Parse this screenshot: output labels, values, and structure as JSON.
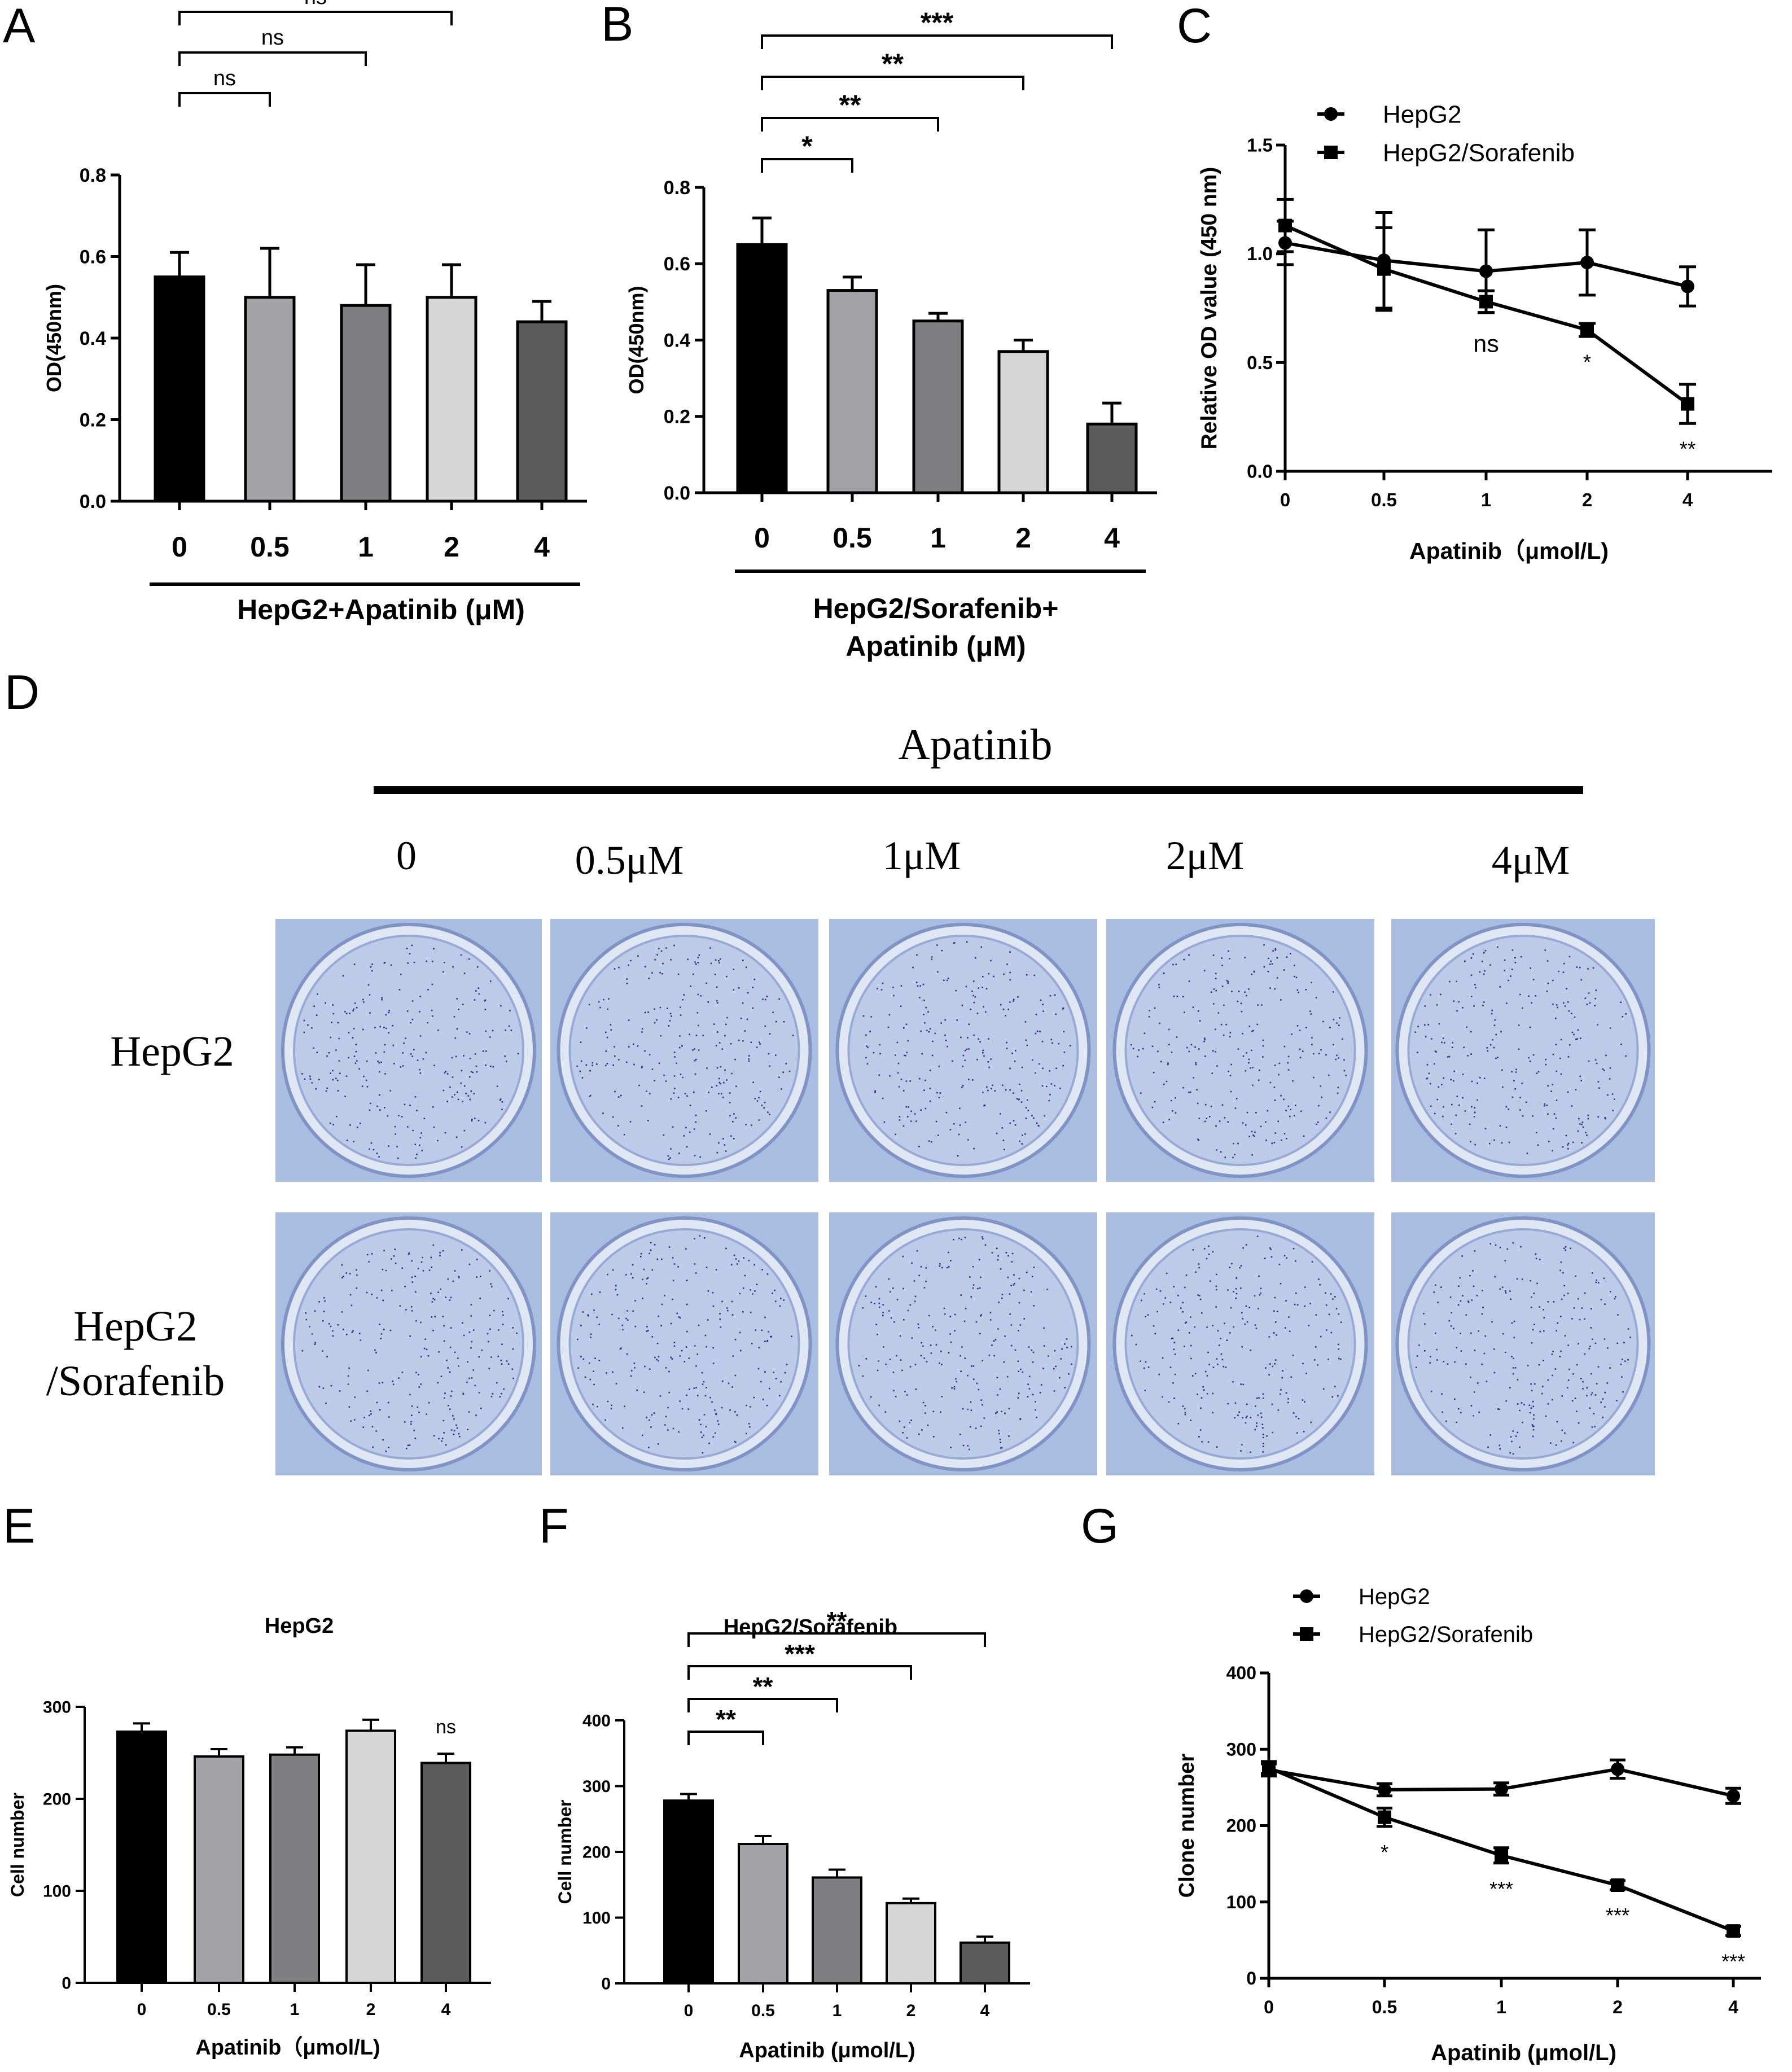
{
  "colors": {
    "black": "#000000",
    "bar_fills": [
      "#000000",
      "#a3a3a7",
      "#7f7f81",
      "#d6d6d6",
      "#5b5b5b"
    ],
    "plate_bg": "#a9bde0",
    "well_fill": "#bccbe8",
    "colony": "#3a2d86"
  },
  "panels": {
    "A": {
      "letter": "A"
    },
    "B": {
      "letter": "B"
    },
    "C": {
      "letter": "C"
    },
    "D": {
      "letter": "D"
    },
    "E": {
      "letter": "E"
    },
    "F": {
      "letter": "F"
    },
    "G": {
      "letter": "G"
    }
  },
  "panelD": {
    "header": "Apatinib",
    "columns": [
      "0",
      "0.5μM",
      "1μM",
      "2μM",
      "4μM"
    ],
    "rows": [
      "HepG2",
      "HepG2",
      "/Sorafenib"
    ]
  },
  "chart_data": [
    {
      "id": "A",
      "type": "bar",
      "categories": [
        "0",
        "0.5",
        "1",
        "2",
        "4"
      ],
      "values": [
        0.55,
        0.5,
        0.48,
        0.5,
        0.44
      ],
      "errors": [
        0.06,
        0.12,
        0.1,
        0.08,
        0.05
      ],
      "ylabel": "OD(450nm)",
      "yticks": [
        "0.0",
        "0.2",
        "0.4",
        "0.6",
        "0.8"
      ],
      "ylim": [
        0,
        0.8
      ],
      "group_label": "HepG2+Apatinib (μM)",
      "significance": [
        {
          "from": 0,
          "to": 1,
          "label": "ns"
        },
        {
          "from": 0,
          "to": 2,
          "label": "ns"
        },
        {
          "from": 0,
          "to": 3,
          "label": "ns"
        },
        {
          "from": 0,
          "to": 4,
          "label": "ns"
        }
      ]
    },
    {
      "id": "B",
      "type": "bar",
      "categories": [
        "0",
        "0.5",
        "1",
        "2",
        "4"
      ],
      "values": [
        0.65,
        0.53,
        0.45,
        0.37,
        0.18
      ],
      "errors": [
        0.07,
        0.035,
        0.02,
        0.03,
        0.055
      ],
      "ylabel": "OD(450nm)",
      "yticks": [
        "0.0",
        "0.2",
        "0.4",
        "0.6",
        "0.8"
      ],
      "ylim": [
        0,
        0.8
      ],
      "group_label_lines": [
        "HepG2/Sorafenib+",
        "Apatinib (μM)"
      ],
      "significance": [
        {
          "from": 0,
          "to": 1,
          "label": "*"
        },
        {
          "from": 0,
          "to": 2,
          "label": "**"
        },
        {
          "from": 0,
          "to": 3,
          "label": "**"
        },
        {
          "from": 0,
          "to": 4,
          "label": "***"
        }
      ]
    },
    {
      "id": "C",
      "type": "line",
      "x": [
        "0",
        "0.5",
        "1",
        "2",
        "4"
      ],
      "series": [
        {
          "name": "HepG2",
          "marker": "circle",
          "values": [
            1.05,
            0.97,
            0.92,
            0.96,
            0.85
          ],
          "errors": [
            0.1,
            0.22,
            0.19,
            0.15,
            0.09
          ]
        },
        {
          "name": "HepG2/Sorafenib",
          "marker": "square",
          "values": [
            1.13,
            0.93,
            0.78,
            0.65,
            0.31
          ],
          "errors": [
            0.12,
            0.19,
            0.05,
            0.03,
            0.09
          ]
        }
      ],
      "annotations": [
        {
          "index": 2,
          "label": "ns"
        },
        {
          "index": 3,
          "label": "*"
        },
        {
          "index": 4,
          "label": "**"
        }
      ],
      "ylabel": "Relative OD value (450 nm)",
      "xlabel": "Apatinib（μmol/L)",
      "yticks": [
        "0.0",
        "0.5",
        "1.0",
        "1.5"
      ],
      "ylim": [
        0,
        1.5
      ]
    },
    {
      "id": "E",
      "type": "bar",
      "title": "HepG2",
      "categories": [
        "0",
        "0.5",
        "1",
        "2",
        "4"
      ],
      "values": [
        273,
        246,
        248,
        274,
        239
      ],
      "errors": [
        9,
        8,
        8,
        12,
        10
      ],
      "ylabel": "Cell number",
      "xlabel": "Apatinib（μmol/L)",
      "yticks": [
        "0",
        "100",
        "200",
        "300"
      ],
      "ylim": [
        0,
        300
      ],
      "annotations": [
        {
          "index": 4,
          "label": "ns"
        }
      ]
    },
    {
      "id": "F",
      "type": "bar",
      "title": "HepG2/Sorafenib",
      "categories": [
        "0",
        "0.5",
        "1",
        "2",
        "4"
      ],
      "values": [
        278,
        212,
        161,
        122,
        62
      ],
      "errors": [
        10,
        12,
        12,
        7,
        9
      ],
      "ylabel": "Cell number",
      "xlabel": "Apatinib (μmol/L)",
      "yticks": [
        "0",
        "100",
        "200",
        "300",
        "400"
      ],
      "ylim": [
        0,
        400
      ],
      "significance": [
        {
          "from": 0,
          "to": 1,
          "label": "**"
        },
        {
          "from": 0,
          "to": 2,
          "label": "**"
        },
        {
          "from": 0,
          "to": 3,
          "label": "***"
        },
        {
          "from": 0,
          "to": 4,
          "label": "**"
        }
      ]
    },
    {
      "id": "G",
      "type": "line",
      "x": [
        "0",
        "0.5",
        "1",
        "2",
        "4"
      ],
      "series": [
        {
          "name": "HepG2",
          "marker": "circle",
          "values": [
            273,
            247,
            248,
            274,
            239
          ],
          "errors": [
            8,
            8,
            8,
            12,
            10
          ]
        },
        {
          "name": "HepG2/Sorafenib",
          "marker": "square",
          "values": [
            276,
            211,
            161,
            122,
            62
          ],
          "errors": [
            8,
            12,
            10,
            6,
            6
          ]
        }
      ],
      "annotations": [
        {
          "index": 1,
          "label": "*"
        },
        {
          "index": 2,
          "label": "***"
        },
        {
          "index": 3,
          "label": "***"
        },
        {
          "index": 4,
          "label": "***"
        }
      ],
      "ylabel": "Clone number",
      "xlabel": "Apatinib (μmol/L)",
      "yticks": [
        "0",
        "100",
        "200",
        "300",
        "400"
      ],
      "ylim": [
        0,
        400
      ]
    }
  ]
}
